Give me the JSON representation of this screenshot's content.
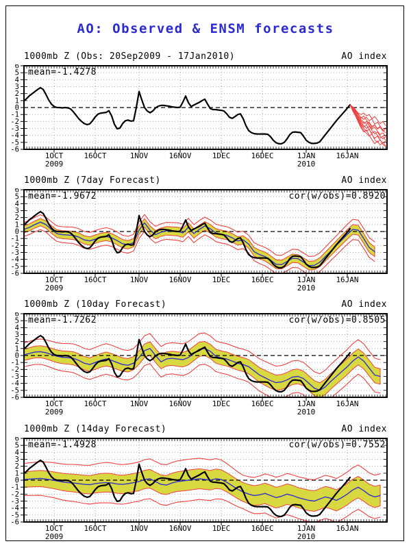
{
  "title": "AO: Observed & ENSM forecasts",
  "colors": {
    "title": "#2a2ad0",
    "observed_line": "#000000",
    "forecast_mean_line": "#3232c8",
    "ensemble_envelope": "#ee4040",
    "spread_band": "#d8d840",
    "grid": "#a8a8a8",
    "zero_line": "#000000",
    "frame": "#000000"
  },
  "axis": {
    "ylim": [
      -6,
      6
    ],
    "y_tick_labels": [
      "6",
      "5",
      "4",
      "3",
      "2",
      "1",
      "0",
      "-1",
      "-2",
      "-3",
      "-4",
      "-5",
      "-6"
    ],
    "x_ticks": [
      {
        "label": "1OCT",
        "sublabel": "2009",
        "day": 11
      },
      {
        "label": "16OCT",
        "sublabel": "",
        "day": 26
      },
      {
        "label": "1NOV",
        "sublabel": "",
        "day": 42
      },
      {
        "label": "16NOV",
        "sublabel": "",
        "day": 57
      },
      {
        "label": "1DEC",
        "sublabel": "",
        "day": 72
      },
      {
        "label": "16DEC",
        "sublabel": "",
        "day": 87
      },
      {
        "label": "1JAN",
        "sublabel": "2010",
        "day": 103
      },
      {
        "label": "16JAN",
        "sublabel": "",
        "day": 118
      }
    ],
    "day_min": 0,
    "day_max": 132.5,
    "minor_tick_days": 1,
    "grid": "dotted"
  },
  "chart_data": [
    {
      "type": "line",
      "name": "observed",
      "title_left": "1000mb Z (Obs: 20Sep2009 - 17Jan2010)",
      "title_right": "AO index",
      "annotation_mean": "mean=-1.4278",
      "obs_start_day": 0,
      "observed": [
        0.95,
        1.3,
        1.7,
        2.0,
        2.3,
        2.6,
        2.85,
        2.6,
        1.9,
        1.1,
        0.5,
        0.15,
        0.0,
        0.0,
        -0.05,
        0.0,
        -0.05,
        -0.2,
        -0.6,
        -1.1,
        -1.6,
        -2.0,
        -2.3,
        -2.45,
        -2.35,
        -1.9,
        -1.35,
        -0.95,
        -0.8,
        -0.75,
        -0.7,
        -0.45,
        -1.2,
        -2.4,
        -3.05,
        -2.95,
        -2.3,
        -1.9,
        -1.8,
        -1.95,
        -1.9,
        0.0,
        2.3,
        1.1,
        0.0,
        -0.5,
        -0.75,
        -0.5,
        -0.05,
        0.2,
        0.3,
        0.3,
        0.25,
        0.2,
        0.1,
        0.05,
        0.0,
        0.05,
        0.8,
        1.65,
        0.7,
        0.15,
        0.35,
        0.55,
        0.75,
        1.0,
        1.2,
        0.5,
        -0.15,
        -0.3,
        -0.3,
        -0.35,
        -0.4,
        -0.5,
        -0.9,
        -1.4,
        -1.55,
        -1.3,
        -1.0,
        -0.9,
        -1.6,
        -2.6,
        -3.3,
        -3.6,
        -3.75,
        -3.8,
        -3.8,
        -3.8,
        -3.8,
        -3.85,
        -4.2,
        -4.7,
        -5.05,
        -5.2,
        -5.2,
        -5.0,
        -4.5,
        -3.9,
        -3.55,
        -3.5,
        -3.55,
        -3.6,
        -4.1,
        -4.7,
        -5.0,
        -5.15,
        -5.15,
        -5.1,
        -4.9,
        -4.4,
        -3.9,
        -3.4,
        -2.9,
        -2.4,
        -1.9,
        -1.45,
        -1.0,
        -0.55,
        -0.1,
        0.4
      ],
      "ensemble_start_day": 119,
      "ensemble_members": [
        [
          0.4,
          0.0,
          -0.4,
          -0.8,
          -1.0,
          -0.8,
          -1.2,
          -1.0,
          -1.6,
          -1.3,
          -1.8,
          -2.3,
          -2.0,
          -2.6
        ],
        [
          0.4,
          -0.1,
          -0.5,
          -1.0,
          -1.4,
          -1.7,
          -1.4,
          -1.9,
          -1.6,
          -2.4,
          -2.1,
          -2.7,
          -3.2,
          -2.9
        ],
        [
          0.4,
          -0.2,
          -0.7,
          -1.2,
          -1.7,
          -2.1,
          -2.4,
          -2.1,
          -2.7,
          -2.5,
          -3.0,
          -2.7,
          -3.3,
          -3.6
        ],
        [
          0.4,
          -0.1,
          -0.6,
          -1.3,
          -1.9,
          -2.3,
          -2.0,
          -2.6,
          -3.1,
          -2.8,
          -3.4,
          -3.9,
          -3.6,
          -4.2
        ],
        [
          0.4,
          -0.3,
          -0.8,
          -1.5,
          -2.1,
          -2.6,
          -3.0,
          -2.7,
          -3.3,
          -3.8,
          -3.5,
          -4.1,
          -4.5,
          -4.2
        ],
        [
          0.4,
          -0.2,
          -0.9,
          -1.6,
          -2.3,
          -2.8,
          -2.5,
          -3.2,
          -3.7,
          -3.4,
          -4.0,
          -4.4,
          -4.1,
          -4.7
        ],
        [
          0.4,
          -0.4,
          -1.0,
          -1.8,
          -2.5,
          -3.0,
          -3.4,
          -3.1,
          -3.9,
          -4.4,
          -4.1,
          -4.7,
          -5.1,
          -4.8
        ],
        [
          0.4,
          -0.3,
          -1.1,
          -1.9,
          -2.7,
          -3.3,
          -3.7,
          -4.1,
          -3.8,
          -4.6,
          -5.0,
          -4.6,
          -5.3,
          -5.6
        ],
        [
          0.4,
          -0.5,
          -1.2,
          -2.1,
          -2.9,
          -3.5,
          -3.2,
          -4.0,
          -4.6,
          -5.2,
          -4.8,
          -5.4,
          -5.0,
          -5.5
        ],
        [
          0.4,
          0.1,
          -0.3,
          -0.9,
          -1.5,
          -1.2,
          -1.8,
          -2.3,
          -2.9,
          -2.5,
          -3.1,
          -2.8,
          -3.4,
          -3.1
        ]
      ]
    },
    {
      "type": "line",
      "name": "forecast-7day",
      "title_left": "1000mb Z (7day Forecast)",
      "title_right": "AO index",
      "annotation_mean": "mean=-1.9672",
      "annotation_cor": "cor(w/obs)=0.8920",
      "mean_step_days": 2,
      "forecast_mean": [
        0.3,
        0.6,
        1.0,
        1.35,
        1.0,
        0.3,
        -0.3,
        -0.45,
        -0.5,
        -0.55,
        -0.8,
        -1.2,
        -1.35,
        -1.1,
        -0.85,
        -0.7,
        -0.9,
        -1.3,
        -1.75,
        -1.9,
        -1.6,
        0.2,
        1.25,
        0.2,
        -0.45,
        -0.1,
        0.1,
        0.05,
        0.0,
        -0.2,
        0.6,
        -0.3,
        0.3,
        0.8,
        0.4,
        -0.2,
        -0.4,
        -0.55,
        -0.9,
        -1.35,
        -1.2,
        -1.8,
        -2.9,
        -3.3,
        -3.6,
        -4.1,
        -4.7,
        -4.75,
        -4.3,
        -3.85,
        -3.9,
        -4.4,
        -4.9,
        -4.85,
        -4.4,
        -3.6,
        -2.8,
        -2.0,
        -1.2,
        -0.4,
        0.3,
        0.2,
        -1.0,
        -2.3,
        -2.9
      ],
      "band_step_days": 10,
      "inner_band_halfwidth": [
        0.5,
        0.55,
        0.6,
        0.6,
        0.6,
        0.6,
        0.65,
        0.6,
        0.6,
        0.65,
        0.6,
        0.65,
        0.7,
        0.7
      ],
      "outer_band_halfwidth": [
        1.0,
        1.1,
        1.2,
        1.25,
        1.2,
        1.2,
        1.3,
        1.25,
        1.25,
        1.35,
        1.3,
        1.35,
        1.45,
        1.4
      ]
    },
    {
      "type": "line",
      "name": "forecast-10day",
      "title_left": "1000mb Z (10day Forecast)",
      "title_right": "AO index",
      "annotation_mean": "mean=-1.7262",
      "annotation_cor": "cor(w/obs)=0.8505",
      "mean_step_days": 2,
      "forecast_mean": [
        0.1,
        0.3,
        0.5,
        0.55,
        0.4,
        0.15,
        -0.1,
        -0.25,
        -0.3,
        -0.4,
        -0.7,
        -1.1,
        -1.3,
        -1.0,
        -0.7,
        -0.5,
        -0.7,
        -1.0,
        -1.3,
        -1.4,
        -1.1,
        -0.3,
        0.7,
        1.0,
        0.0,
        -0.9,
        -0.5,
        -0.4,
        -0.5,
        -0.6,
        -0.3,
        0.3,
        0.9,
        1.0,
        0.6,
        -0.1,
        -0.35,
        -0.5,
        -0.8,
        -1.1,
        -1.3,
        -1.6,
        -2.2,
        -2.8,
        -3.2,
        -3.6,
        -3.9,
        -3.8,
        -3.5,
        -3.1,
        -3.0,
        -3.3,
        -4.0,
        -4.7,
        -5.0,
        -4.5,
        -3.7,
        -3.0,
        -2.3,
        -1.6,
        -0.8,
        -0.2,
        -0.8,
        -1.8,
        -2.8,
        -3.0
      ],
      "band_step_days": 10,
      "inner_band_halfwidth": [
        0.8,
        0.9,
        0.95,
        1.0,
        0.95,
        1.0,
        1.05,
        1.0,
        1.0,
        1.1,
        1.05,
        1.1,
        1.15,
        1.1
      ],
      "outer_band_halfwidth": [
        1.7,
        1.9,
        2.1,
        2.2,
        2.1,
        2.2,
        2.3,
        2.2,
        2.2,
        2.4,
        2.3,
        2.4,
        2.5,
        2.4
      ]
    },
    {
      "type": "line",
      "name": "forecast-14day",
      "title_left": "1000mb Z (14day Forecast)",
      "title_right": "AO index",
      "annotation_mean": "mean=-1.4928",
      "annotation_cor": "cor(w/obs)=0.7552",
      "mean_step_days": 2,
      "forecast_mean": [
        0.1,
        0.15,
        0.2,
        0.25,
        0.15,
        0.05,
        -0.1,
        -0.25,
        -0.35,
        -0.4,
        -0.5,
        -0.6,
        -0.65,
        -0.5,
        -0.4,
        -0.35,
        -0.4,
        -0.55,
        -0.6,
        -0.5,
        -0.35,
        -0.2,
        0.1,
        0.2,
        -0.2,
        -0.6,
        -0.7,
        -0.4,
        -0.2,
        -0.1,
        0.0,
        0.1,
        0.2,
        0.1,
        0.0,
        0.2,
        0.1,
        -0.3,
        -0.8,
        -1.3,
        -1.7,
        -2.0,
        -2.2,
        -2.1,
        -1.9,
        -2.2,
        -2.5,
        -2.3,
        -2.0,
        -2.2,
        -2.5,
        -2.7,
        -2.9,
        -3.0,
        -2.7,
        -2.4,
        -2.6,
        -2.9,
        -2.5,
        -2.0,
        -1.4,
        -1.0,
        -1.5,
        -2.1,
        -2.4,
        -2.2
      ],
      "band_step_days": 10,
      "inner_band_halfwidth": [
        1.1,
        1.2,
        1.3,
        1.35,
        1.3,
        1.35,
        1.45,
        1.4,
        1.35,
        1.5,
        1.45,
        1.5,
        1.55,
        1.5
      ],
      "outer_band_halfwidth": [
        2.3,
        2.5,
        2.7,
        2.9,
        2.8,
        2.9,
        3.0,
        2.9,
        2.4,
        2.9,
        3.0,
        3.1,
        3.2,
        3.1
      ]
    }
  ]
}
